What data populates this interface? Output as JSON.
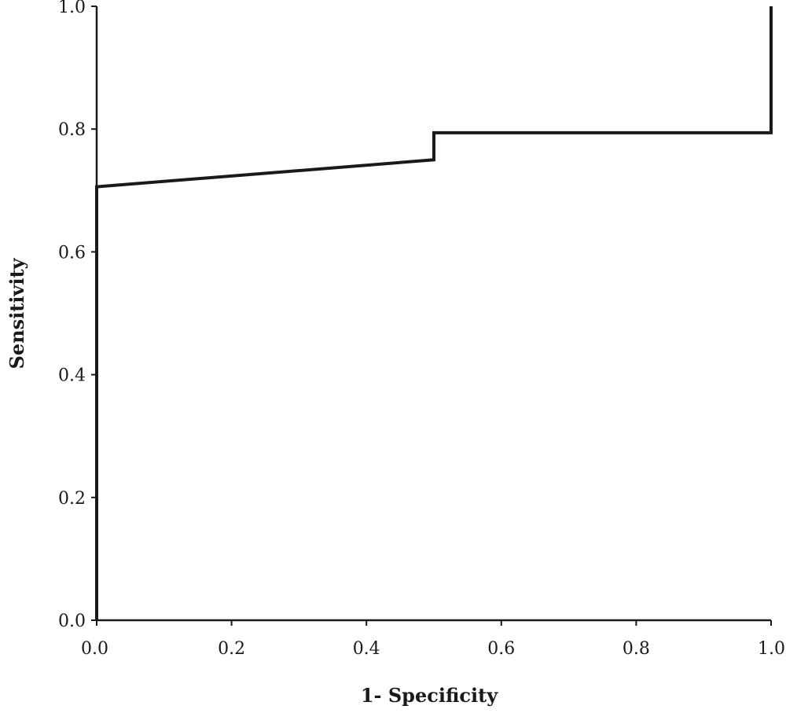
{
  "chart_data": {
    "type": "line",
    "title": "",
    "xlabel": "1- Specificity",
    "ylabel": "Sensitivity",
    "xlim": [
      0,
      1
    ],
    "ylim": [
      0,
      1
    ],
    "x_ticks": [
      "0.0",
      "0.2",
      "0.4",
      "0.6",
      "0.8",
      "1.0"
    ],
    "y_ticks": [
      "0.0",
      "0.2",
      "0.4",
      "0.6",
      "0.8",
      "1.0"
    ],
    "grid": false,
    "legend": "none",
    "series": [
      {
        "x": [
          0.0,
          0.0,
          0.5,
          0.5,
          1.0,
          1.0
        ],
        "y": [
          0.0,
          0.706,
          0.75,
          0.794,
          0.794,
          1.0
        ],
        "color": "#1a1a1a"
      }
    ]
  }
}
